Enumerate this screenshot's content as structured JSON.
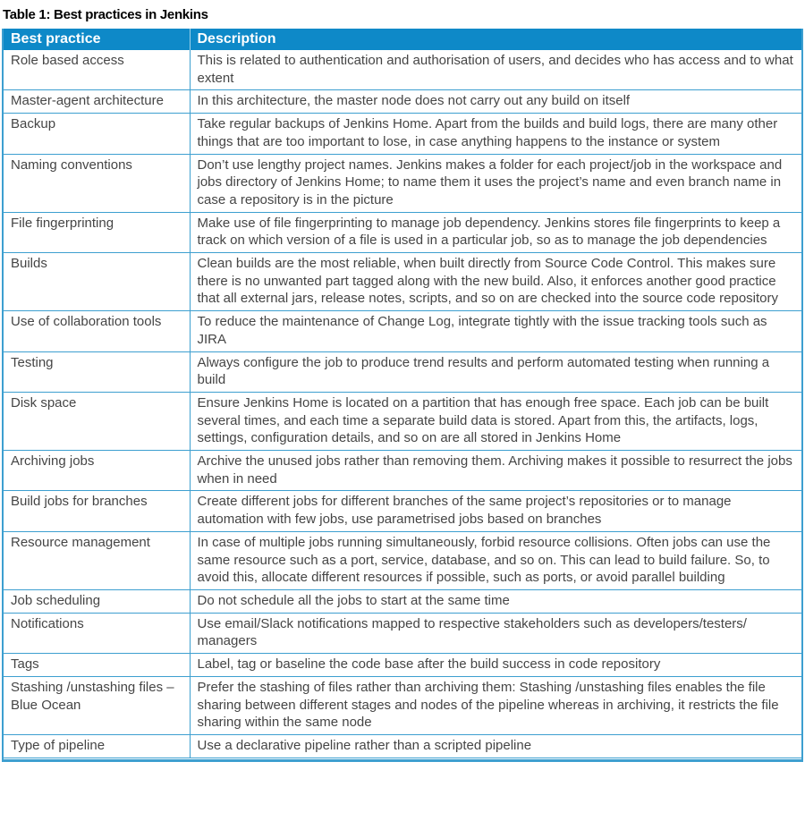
{
  "title": "Table 1: Best practices in Jenkins",
  "colors": {
    "header_bg": "#0e89c8",
    "grid": "#3d9fd0",
    "header_text": "#ffffff",
    "body_text": "#454545"
  },
  "table": {
    "columns": [
      "Best practice",
      "Description"
    ],
    "rows": [
      {
        "practice": "Role based access",
        "description": "This is related to authentication and authorisation of users, and decides who has access and to what extent"
      },
      {
        "practice": "Master-agent architecture",
        "description": "In this architecture, the master node does not carry out any build on itself"
      },
      {
        "practice": "Backup",
        "description": "Take regular backups of Jenkins Home. Apart from the builds and build logs, there are many other things that are too important to lose, in case anything happens to the instance or system"
      },
      {
        "practice": "Naming conventions",
        "description": "Don’t use lengthy project names. Jenkins makes a folder for each project/job in the work­space and jobs directory of Jenkins Home; to name them it uses the project’s name and even branch name in case a repository is in the picture"
      },
      {
        "practice": "File fingerprinting",
        "description": "Make use of file fingerprinting to manage job dependency. Jenkins stores file fingerprints to keep a track on which version of a file is used in a particular job, so as to manage the job dependencies"
      },
      {
        "practice": "Builds",
        "description": "Clean builds are the most reliable, when built directly from Source Code Control. This makes sure there is no unwanted part tagged along with the new build. Also, it enforces another good practice that all external jars, release notes, scripts, and so on are checked into the source code repository"
      },
      {
        "practice": "Use of collaboration tools",
        "description": "To reduce the maintenance of Change Log, integrate tightly with the issue tracking tools such as JIRA"
      },
      {
        "practice": "Testing",
        "description": "Always configure the job to produce trend results and perform automated testing when run­ning a build"
      },
      {
        "practice": "Disk space",
        "description": "Ensure Jenkins Home is located on a partition that has enough free space. Each job can be built several times, and each time a separate build data is stored. Apart from this, the artifacts, logs, settings, configuration details, and so on are all stored in Jenkins Home"
      },
      {
        "practice": "Archiving jobs",
        "description": "Archive the unused jobs rather than removing them. Archiving makes it possible to resurrect the jobs when in need"
      },
      {
        "practice": "Build jobs for branches",
        "description": "Create different jobs for different branches of the same project’s repositories or to manage automation with few jobs, use parametrised jobs based on branches"
      },
      {
        "practice": "Resource management",
        "description": "In case of multiple jobs running simultaneously, forbid resource collisions. Often jobs can use the same resource such as a port, service, database, and so on. This can lead to build failure. So, to avoid this, allocate different resources if possible, such as ports, or avoid paral­lel building"
      },
      {
        "practice": "Job scheduling",
        "description": "Do not schedule all the jobs to start at the same time"
      },
      {
        "practice": "Notifications",
        "description": "Use email/Slack notifications mapped to respective stakeholders such as developers/testers/​managers"
      },
      {
        "practice": "Tags",
        "description": "Label, tag or baseline the code base after the build success in code repository"
      },
      {
        "practice": "Stashing /unstashing files – Blue Ocean",
        "description": "Prefer the stashing of files rather than archiving them: Stashing /unstashing files enables the file sharing between different stages and nodes of the pipeline whereas in archiving, it restricts the file sharing within the same node"
      },
      {
        "practice": "Type of pipeline",
        "description": "Use a declarative pipeline rather than a scripted pipeline"
      }
    ]
  }
}
